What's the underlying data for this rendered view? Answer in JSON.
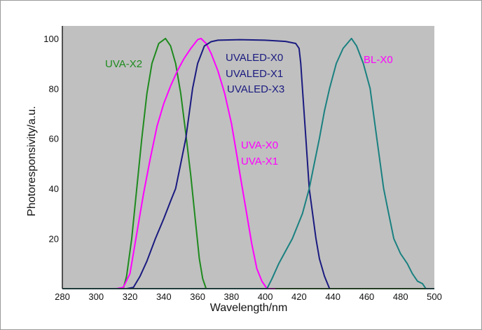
{
  "chart_data": {
    "type": "line",
    "title": "",
    "xlabel": "Wavelength/nm",
    "ylabel": "Photoresponsivity/a.u.",
    "xlim": [
      280,
      500
    ],
    "ylim": [
      0,
      105
    ],
    "xticks": [
      280,
      300,
      320,
      340,
      360,
      380,
      400,
      420,
      440,
      460,
      480,
      500
    ],
    "yticks": [
      20,
      40,
      60,
      80,
      100
    ],
    "grid": false,
    "background": "#c0c0c0",
    "series": [
      {
        "name": "UVA-X2",
        "color": "#1e8a1e",
        "x": [
          280,
          316,
          318,
          321,
          324,
          327,
          330,
          333,
          337,
          341,
          344,
          347,
          350,
          353,
          356,
          359,
          361,
          363,
          365,
          500
        ],
        "y": [
          0,
          0,
          5,
          20,
          40,
          60,
          78,
          90,
          98,
          100,
          97,
          90,
          78,
          62,
          45,
          25,
          12,
          4,
          0,
          0
        ]
      },
      {
        "name": "UVA-X0 / UVA-X1",
        "color": "#ff00ff",
        "x": [
          312,
          316,
          320,
          324,
          328,
          332,
          336,
          340,
          344,
          348,
          352,
          356,
          360,
          362,
          365,
          368,
          372,
          376,
          380,
          383,
          386,
          389,
          392,
          395,
          398,
          401,
          406
        ],
        "y": [
          0,
          0.5,
          6,
          22,
          38,
          52,
          65,
          74,
          81,
          87,
          92,
          96,
          99.5,
          100,
          98,
          94,
          87,
          78,
          66,
          54,
          42,
          30,
          18,
          8,
          3,
          0,
          0
        ]
      },
      {
        "name": "UVALED-X0 / UVALED-X1 / UVALED-X3",
        "color": "#1a1a80",
        "x": [
          318,
          322,
          326,
          330,
          335,
          340,
          344,
          347,
          350,
          353,
          357,
          360,
          364,
          368,
          372,
          385,
          400,
          412,
          418,
          420,
          421,
          422,
          424,
          426,
          428,
          430,
          432,
          435,
          438
        ],
        "y": [
          0,
          0.5,
          5,
          11,
          20,
          28,
          35,
          40,
          50,
          60,
          80,
          90,
          97,
          98.7,
          99.3,
          99.5,
          99.3,
          98.8,
          98,
          96,
          90,
          80,
          60,
          40,
          30,
          20,
          12,
          5,
          0
        ]
      },
      {
        "name": "BL-X0",
        "color": "#1a8080",
        "x": [
          280,
          401,
          404,
          408,
          412,
          416,
          422,
          426,
          429,
          432,
          435,
          438,
          442,
          446,
          451,
          454,
          458,
          462,
          466,
          470,
          473,
          476,
          480,
          484,
          487,
          490,
          493,
          495,
          500
        ],
        "y": [
          0,
          0,
          4,
          10,
          15,
          20,
          30,
          40,
          50,
          60,
          71,
          80,
          90,
          96,
          100,
          97,
          90,
          80,
          60,
          40,
          30,
          20,
          14,
          10,
          6,
          3,
          2,
          0,
          0
        ]
      }
    ],
    "annotations": [
      {
        "text": "UVA-X2",
        "color": "#1e8a1e"
      },
      {
        "text": "UVALED-X0",
        "color": "#1a1a80"
      },
      {
        "text": "UVALED-X1",
        "color": "#1a1a80"
      },
      {
        "text": "UVALED-X3",
        "color": "#1a1a80"
      },
      {
        "text": "UVA-X0",
        "color": "#ff00ff"
      },
      {
        "text": "UVA-X1",
        "color": "#ff00ff"
      },
      {
        "text": "BL-X0",
        "color": "#ff00ff"
      }
    ]
  }
}
